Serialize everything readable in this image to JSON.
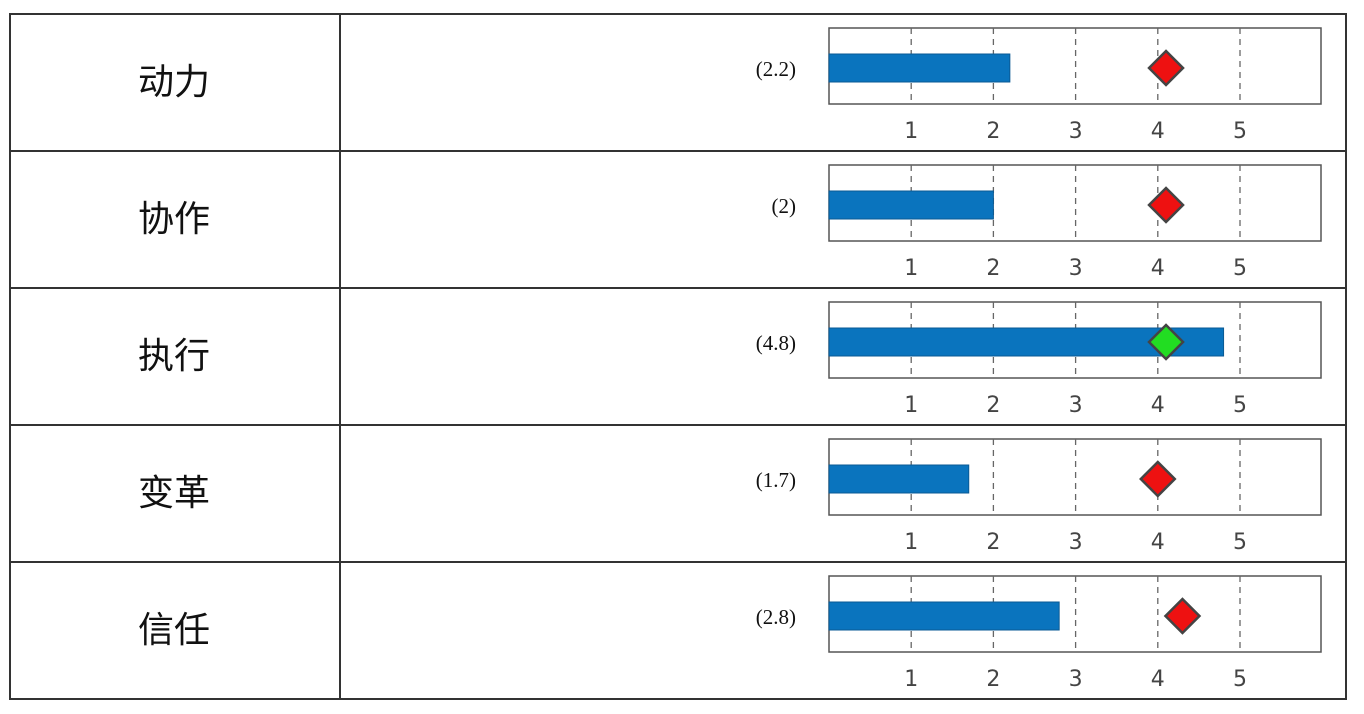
{
  "chart_data": {
    "type": "bar",
    "orientation": "horizontal",
    "x_ticks": [
      1,
      2,
      3,
      4,
      5
    ],
    "xlim": [
      0,
      6
    ],
    "grid": "dashed vertical at ticks",
    "rows": [
      {
        "category": "动力",
        "value": 2.2,
        "value_label": "(2.2)",
        "marker": 4.1,
        "marker_color": "#ee1111"
      },
      {
        "category": "协作",
        "value": 2.0,
        "value_label": "(2)",
        "marker": 4.1,
        "marker_color": "#ee1111"
      },
      {
        "category": "执行",
        "value": 4.8,
        "value_label": "(4.8)",
        "marker": 4.1,
        "marker_color": "#22dd22"
      },
      {
        "category": "变革",
        "value": 1.7,
        "value_label": "(1.7)",
        "marker": 4.0,
        "marker_color": "#ee1111"
      },
      {
        "category": "信任",
        "value": 2.8,
        "value_label": "(2.8)",
        "marker": 4.3,
        "marker_color": "#ee1111"
      }
    ]
  },
  "colors": {
    "bar": "#0a74be",
    "border": "#333333",
    "frame": "#555555",
    "gridline": "#666666",
    "tick_text": "#444444"
  }
}
